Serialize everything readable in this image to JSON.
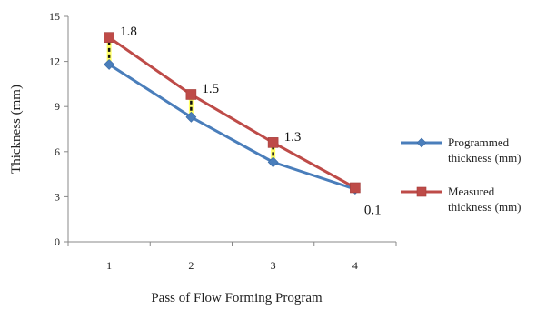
{
  "chart_data": {
    "type": "line",
    "categories": [
      "1",
      "2",
      "3",
      "4"
    ],
    "series": [
      {
        "name": "Programmed thickness (mm)",
        "name_lines": [
          "Programmed",
          "thickness (mm)"
        ],
        "values": [
          11.8,
          8.3,
          5.3,
          3.5
        ],
        "color": "#4A7EBB",
        "marker": "diamond"
      },
      {
        "name": "Measured thickness (mm)",
        "name_lines": [
          "Measured",
          "thickness (mm)"
        ],
        "values": [
          13.6,
          9.8,
          6.6,
          3.6
        ],
        "color": "#BE4B48",
        "marker": "square"
      }
    ],
    "difference_labels": [
      "1.8",
      "1.5",
      "1.3",
      "0.1"
    ],
    "title": "",
    "xlabel": "Pass of Flow Forming Program",
    "ylabel": "Thickness (mm)",
    "ylim": [
      0,
      15
    ],
    "yticks": [
      "0",
      "3",
      "6",
      "9",
      "12",
      "15"
    ],
    "grid": false,
    "legend_position": "right"
  }
}
